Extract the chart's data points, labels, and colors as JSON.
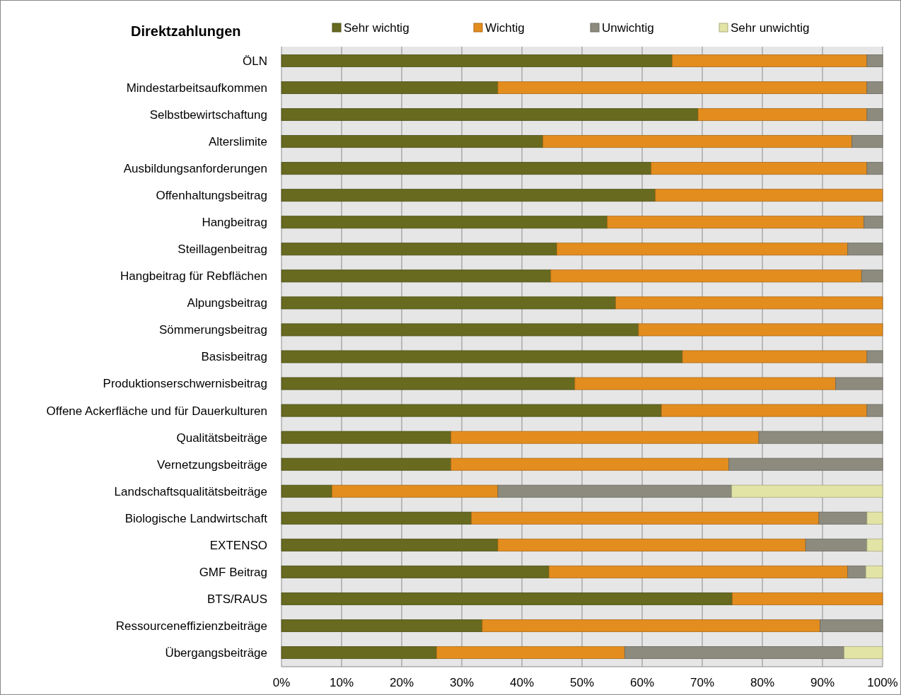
{
  "chart_data": {
    "type": "bar",
    "orientation": "horizontal",
    "stacked": true,
    "title": "Direktzahlungen",
    "categories": [
      "ÖLN",
      "Mindestarbeitsaufkommen",
      "Selbstbewirtschaftung",
      "Alterslimite",
      "Ausbildungsanforderungen",
      "Offenhaltungsbeitrag",
      "Hangbeitrag",
      "Steillagenbeitrag",
      "Hangbeitrag für Rebflächen",
      "Alpungsbeitrag",
      "Sömmerungsbeitrag",
      "Basisbeitrag",
      "Produktionserschwernisbeitrag",
      "Offene Ackerfläche und für Dauerkulturen",
      "Qualitätsbeiträge",
      "Vernetzungsbeiträge",
      "Landschaftsqualitätsbeiträge",
      "Biologische Landwirtschaft",
      "EXTENSO",
      "GMF Beitrag",
      "BTS/RAUS",
      "Ressourceneffizienzbeiträge",
      "Übergangsbeiträge"
    ],
    "series": [
      {
        "name": "Sehr wichtig",
        "color": "#676a1f",
        "values": [
          65,
          36,
          69.3,
          43.5,
          61.5,
          62.2,
          54.2,
          45.8,
          44.8,
          55.6,
          59.4,
          66.7,
          48.8,
          63.2,
          28.2,
          28.2,
          8.4,
          31.6,
          36,
          44.5,
          75,
          33.4,
          25.8
        ]
      },
      {
        "name": "Wichtig",
        "color": "#e38d1f",
        "values": [
          32.4,
          61.4,
          28.1,
          51.4,
          35.9,
          37.8,
          42.7,
          48.4,
          51.7,
          44.4,
          40.6,
          30.7,
          43.4,
          34.2,
          51.2,
          46.2,
          27.6,
          57.8,
          51.2,
          49.7,
          25,
          56.2,
          31.3
        ]
      },
      {
        "name": "Unwichtig",
        "color": "#8c8b7e",
        "values": [
          2.6,
          2.6,
          2.6,
          5.1,
          2.6,
          0,
          3.1,
          5.8,
          3.5,
          0,
          0,
          2.6,
          7.8,
          2.6,
          20.6,
          25.6,
          38.9,
          8,
          10.2,
          3,
          0,
          10.4,
          36.5
        ]
      },
      {
        "name": "Sehr unwichtig",
        "color": "#e2e4a6",
        "values": [
          0,
          0,
          0,
          0,
          0,
          0,
          0,
          0,
          0,
          0,
          0,
          0,
          0,
          0,
          0,
          0,
          25.1,
          2.6,
          2.6,
          2.8,
          0,
          0,
          6.4
        ]
      }
    ],
    "xlim": [
      0,
      100
    ],
    "xticks": [
      {
        "value": 0,
        "label": "0%"
      },
      {
        "value": 10,
        "label": "10%"
      },
      {
        "value": 20,
        "label": "20%"
      },
      {
        "value": 30,
        "label": "30%"
      },
      {
        "value": 40,
        "label": "40%"
      },
      {
        "value": 50,
        "label": "50%"
      },
      {
        "value": 60,
        "label": "60%"
      },
      {
        "value": 70,
        "label": "70%"
      },
      {
        "value": 80,
        "label": "80%"
      },
      {
        "value": 90,
        "label": "90%"
      },
      {
        "value": 100,
        "label": "100%"
      }
    ],
    "grid": "x",
    "legend": "top"
  }
}
